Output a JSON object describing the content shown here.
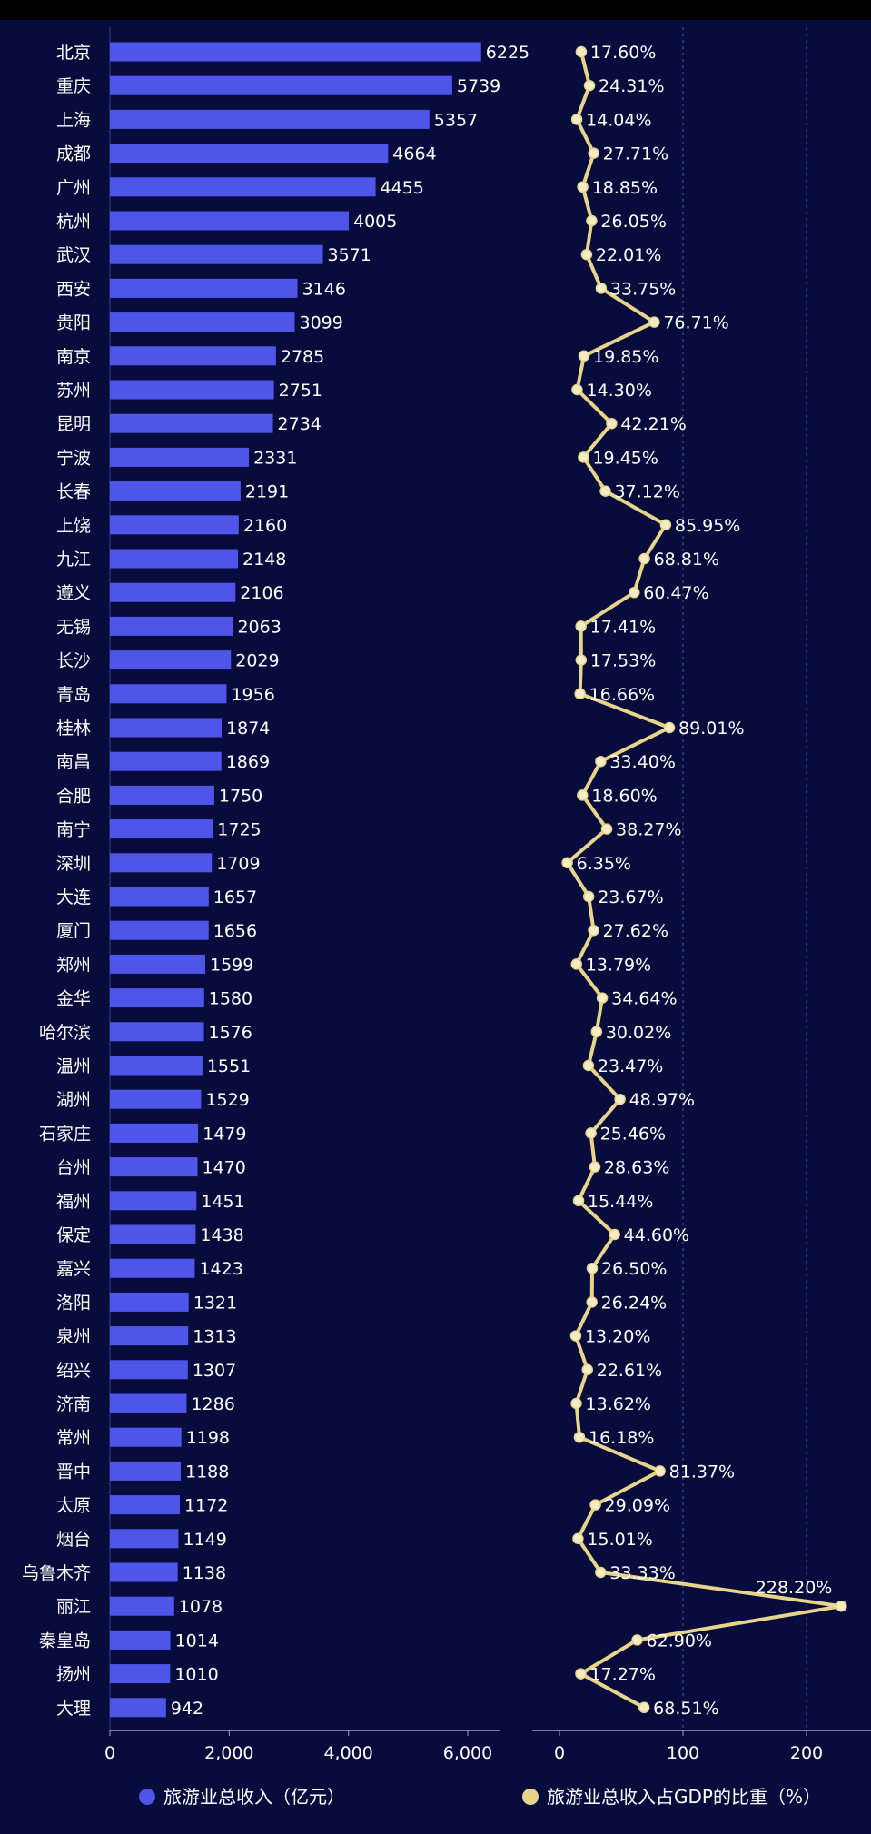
{
  "chart_data": {
    "type": "bar+line",
    "categories": [
      "北京",
      "重庆",
      "上海",
      "成都",
      "广州",
      "杭州",
      "武汉",
      "西安",
      "贵阳",
      "南京",
      "苏州",
      "昆明",
      "宁波",
      "长春",
      "上饶",
      "九江",
      "遵义",
      "无锡",
      "长沙",
      "青岛",
      "桂林",
      "南昌",
      "合肥",
      "南宁",
      "深圳",
      "大连",
      "厦门",
      "郑州",
      "金华",
      "哈尔滨",
      "温州",
      "湖州",
      "石家庄",
      "台州",
      "福州",
      "保定",
      "嘉兴",
      "洛阳",
      "泉州",
      "绍兴",
      "济南",
      "常州",
      "晋中",
      "太原",
      "烟台",
      "乌鲁木齐",
      "丽江",
      "秦皇岛",
      "扬州",
      "大理"
    ],
    "series": [
      {
        "name": "旅游业总收入（亿元）",
        "type": "bar",
        "color": "#4f55e8",
        "values": [
          6225,
          5739,
          5357,
          4664,
          4455,
          4005,
          3571,
          3146,
          3099,
          2785,
          2751,
          2734,
          2331,
          2191,
          2160,
          2148,
          2106,
          2063,
          2029,
          1956,
          1874,
          1869,
          1750,
          1725,
          1709,
          1657,
          1656,
          1599,
          1580,
          1576,
          1551,
          1529,
          1479,
          1470,
          1451,
          1438,
          1423,
          1321,
          1313,
          1307,
          1286,
          1198,
          1188,
          1172,
          1149,
          1138,
          1078,
          1014,
          1010,
          942
        ],
        "labels": [
          "6225",
          "5739",
          "5357",
          "4664",
          "4455",
          "4005",
          "3571",
          "3146",
          "3099",
          "2785",
          "2751",
          "2734",
          "2331",
          "2191",
          "2160",
          "2148",
          "2106",
          "2063",
          "2029",
          "1956",
          "1874",
          "1869",
          "1750",
          "1725",
          "1709",
          "1657",
          "1656",
          "1599",
          "1580",
          "1576",
          "1551",
          "1529",
          "1479",
          "1470",
          "1451",
          "1438",
          "1423",
          "1321",
          "1313",
          "1307",
          "1286",
          "1198",
          "1188",
          "1172",
          "1149",
          "1138",
          "1078",
          "1014",
          "1010",
          "942"
        ]
      },
      {
        "name": "旅游业总收入占GDP的比重（%）",
        "type": "line",
        "color": "#e8d48a",
        "values": [
          17.6,
          24.31,
          14.04,
          27.71,
          18.85,
          26.05,
          22.01,
          33.75,
          76.71,
          19.85,
          14.3,
          42.21,
          19.45,
          37.12,
          85.95,
          68.81,
          60.47,
          17.41,
          17.53,
          16.66,
          89.01,
          33.4,
          18.6,
          38.27,
          6.35,
          23.67,
          27.62,
          13.79,
          34.64,
          30.02,
          23.47,
          48.97,
          25.46,
          28.63,
          15.44,
          44.6,
          26.5,
          26.24,
          13.2,
          22.61,
          13.62,
          16.18,
          81.37,
          29.09,
          15.01,
          33.33,
          228.2,
          62.9,
          17.27,
          68.51
        ],
        "labels": [
          "17.60%",
          "24.31%",
          "14.04%",
          "27.71%",
          "18.85%",
          "26.05%",
          "22.01%",
          "33.75%",
          "76.71%",
          "19.85%",
          "14.30%",
          "42.21%",
          "19.45%",
          "37.12%",
          "85.95%",
          "68.81%",
          "60.47%",
          "17.41%",
          "17.53%",
          "16.66%",
          "89.01%",
          "33.40%",
          "18.60%",
          "38.27%",
          "6.35%",
          "23.67%",
          "27.62%",
          "13.79%",
          "34.64%",
          "30.02%",
          "23.47%",
          "48.97%",
          "25.46%",
          "28.63%",
          "15.44%",
          "44.60%",
          "26.50%",
          "26.24%",
          "13.20%",
          "22.61%",
          "13.62%",
          "16.18%",
          "81.37%",
          "29.09%",
          "15.01%",
          "33.33%",
          "228.20%",
          "62.90%",
          "17.27%",
          "68.51%"
        ]
      }
    ],
    "bar_axis": {
      "ticks": [
        0,
        2000,
        4000,
        6000
      ],
      "tick_labels": [
        "0",
        "2,000",
        "4,000",
        "6,000"
      ],
      "xlim": [
        0,
        6500
      ]
    },
    "line_axis": {
      "ticks": [
        0,
        100,
        200
      ],
      "tick_labels": [
        "0",
        "100",
        "200"
      ],
      "xlim": [
        0,
        228.2
      ],
      "grid": "dashed"
    },
    "legend": {
      "position": "bottom",
      "items": [
        {
          "label": "旅游业总收入（亿元）",
          "color": "#4f55e8"
        },
        {
          "label": "旅游业总收入占GDP的比重（%）",
          "color": "#e8d48a"
        }
      ]
    }
  }
}
